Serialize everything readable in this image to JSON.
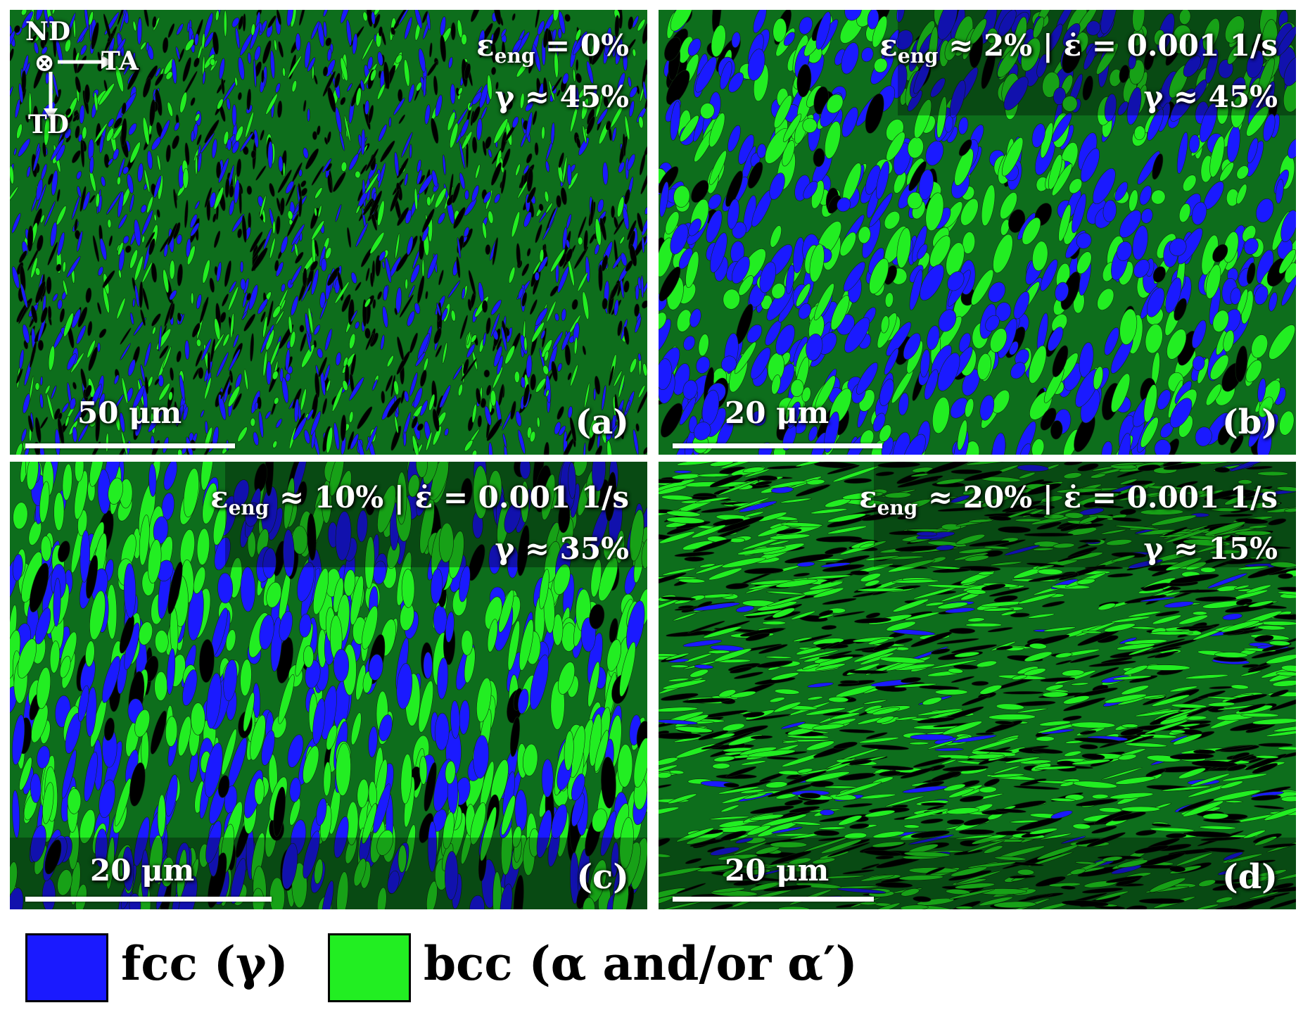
{
  "colors": {
    "fcc": "#1a1aff",
    "bcc": "#22ee22",
    "background_phase": "#0d6e1c",
    "boundary": "#000000"
  },
  "panels": [
    {
      "id": "a",
      "letter": "(a)",
      "strain_prefix": "ε",
      "strain_sub": "eng",
      "strain_text": " = 0%",
      "rate_text": "",
      "gamma_text": "γ ≈ 45%",
      "scale_text": "50 μm",
      "axes": {
        "nd": "ND",
        "ta": "TA",
        "td": "TD",
        "symbol": "⊗"
      }
    },
    {
      "id": "b",
      "letter": "(b)",
      "strain_prefix": "ε",
      "strain_sub": "eng",
      "strain_text": " ≈ 2%",
      "rate_text": " | ε̇ = 0.001 1/s",
      "gamma_text": "γ ≈ 45%",
      "scale_text": "20 μm"
    },
    {
      "id": "c",
      "letter": "(c)",
      "strain_prefix": "ε",
      "strain_sub": "eng",
      "strain_text": " ≈ 10%",
      "rate_text": " | ε̇ = 0.001 1/s",
      "gamma_text": "γ ≈ 35%",
      "scale_text": "20 μm"
    },
    {
      "id": "d",
      "letter": "(d)",
      "strain_prefix": "ε",
      "strain_sub": "eng",
      "strain_text": " ≈ 20%",
      "rate_text": " | ε̇ = 0.001 1/s",
      "gamma_text": "γ ≈ 15%",
      "scale_text": "20 μm"
    }
  ],
  "legend": {
    "fcc_label": "fcc (γ)",
    "bcc_label": "bcc (α and/or α′)"
  }
}
